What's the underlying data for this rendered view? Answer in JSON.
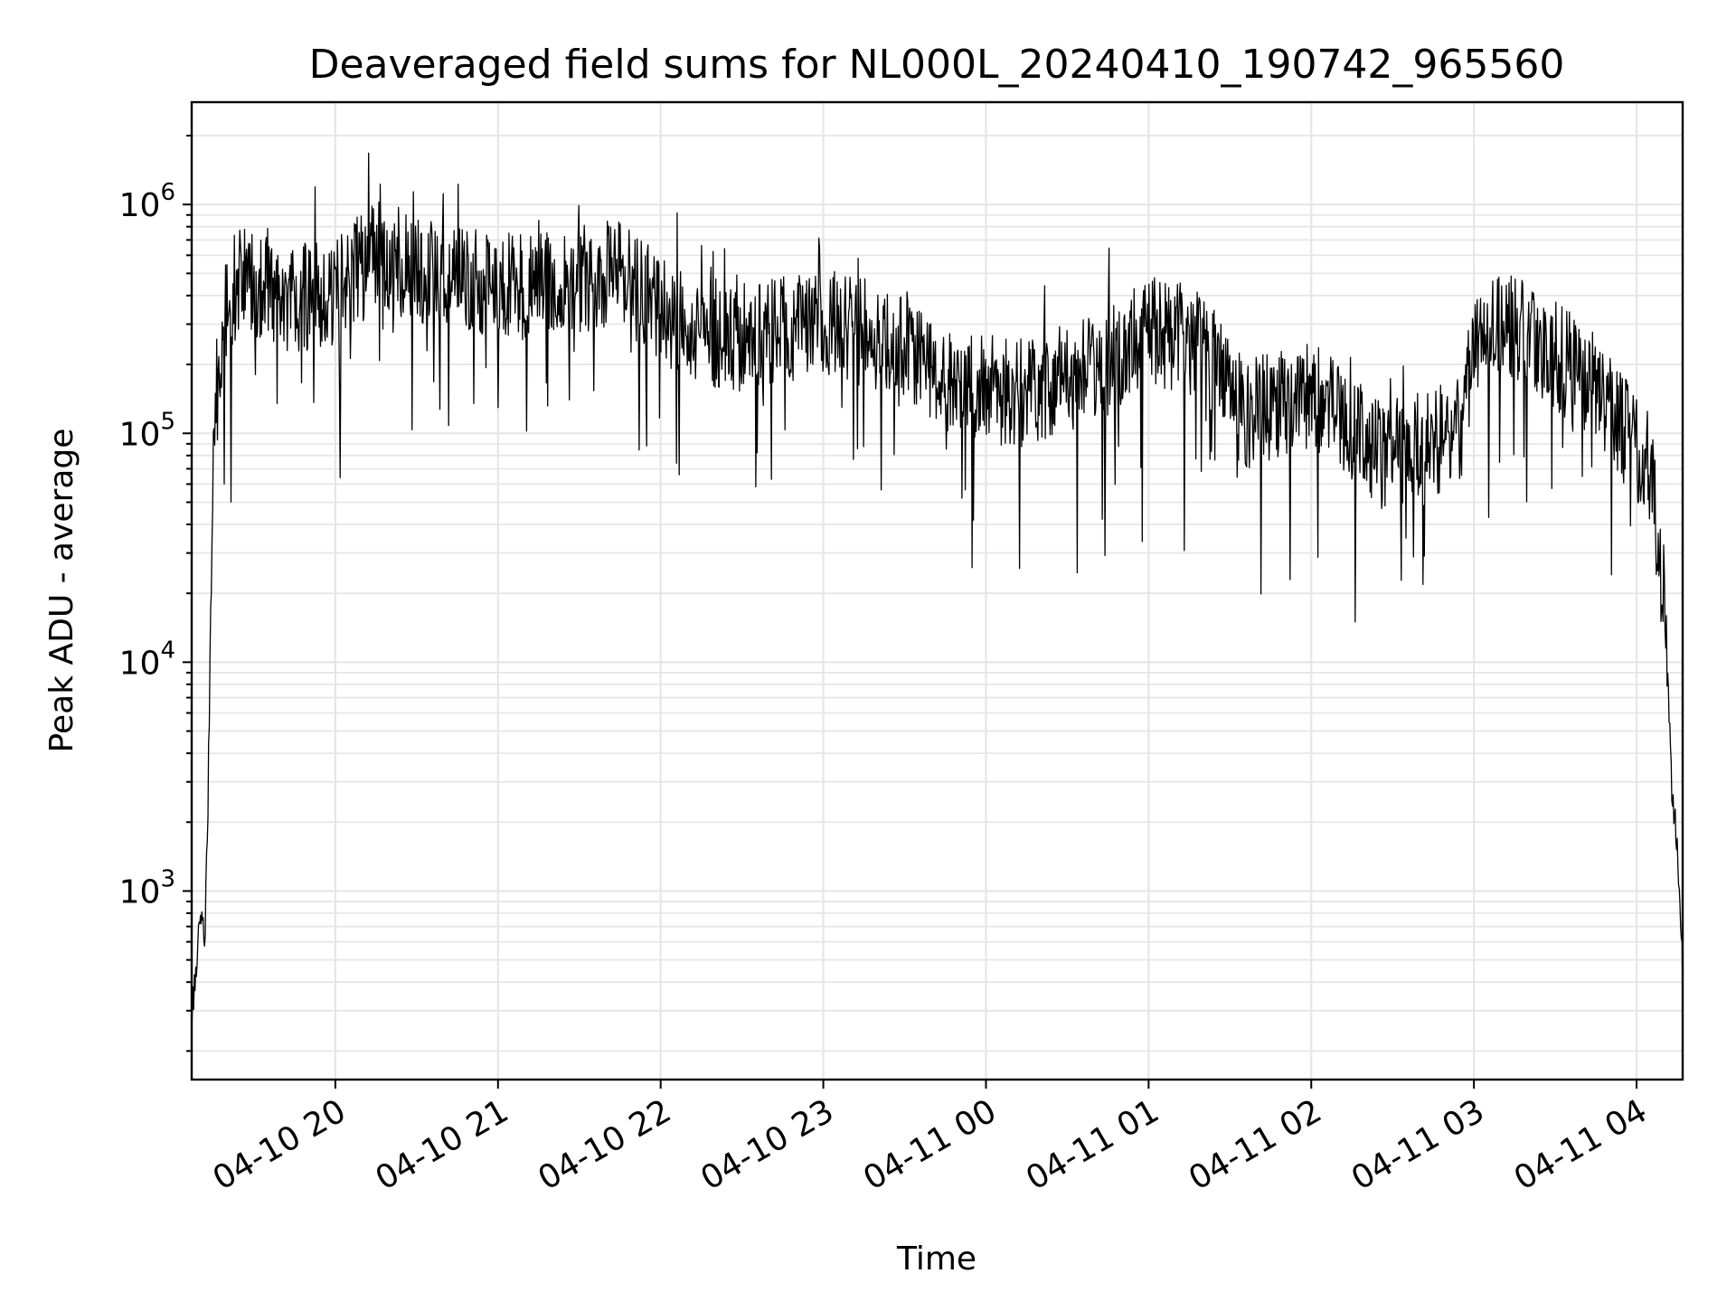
{
  "chart_data": {
    "type": "line",
    "title": "Deaveraged field sums for NL000L_20240410_190742_965560",
    "xlabel": "Time",
    "ylabel": "Peak ADU - average",
    "yscale": "log",
    "ylim": [
      150,
      2800000
    ],
    "xlim": [
      "04-10 19:07",
      "04-11 04:17"
    ],
    "grid": true,
    "line_color": "#000000",
    "x_ticks": [
      "04-10 20",
      "04-10 21",
      "04-10 22",
      "04-10 23",
      "04-11 00",
      "04-11 01",
      "04-11 02",
      "04-11 03",
      "04-11 04"
    ],
    "y_ticks": [
      {
        "value": 1000,
        "mantissa": "10",
        "exp": "3"
      },
      {
        "value": 10000,
        "mantissa": "10",
        "exp": "4"
      },
      {
        "value": 100000,
        "mantissa": "10",
        "exp": "5"
      },
      {
        "value": 1000000,
        "mantissa": "10",
        "exp": "6"
      }
    ],
    "x_ticks_time": [
      "04-10 20:00",
      "04-10 21:00",
      "04-10 22:00",
      "04-10 23:00",
      "04-11 00:00",
      "04-11 01:00",
      "04-11 02:00",
      "04-11 03:00",
      "04-11 04:00"
    ],
    "trend": [
      {
        "t": "04-10 19:07",
        "y": 250
      },
      {
        "t": "04-10 19:08",
        "y": 400
      },
      {
        "t": "04-10 19:09",
        "y": 500
      },
      {
        "t": "04-10 19:10",
        "y": 700
      },
      {
        "t": "04-10 19:12",
        "y": 650
      },
      {
        "t": "04-10 19:13",
        "y": 2500
      },
      {
        "t": "04-10 19:14",
        "y": 15000
      },
      {
        "t": "04-10 19:15",
        "y": 80000
      },
      {
        "t": "04-10 19:17",
        "y": 180000
      },
      {
        "t": "04-10 19:20",
        "y": 350000
      },
      {
        "t": "04-10 19:25",
        "y": 500000
      },
      {
        "t": "04-10 19:40",
        "y": 380000
      },
      {
        "t": "04-10 20:00",
        "y": 420000
      },
      {
        "t": "04-10 20:15",
        "y": 600000
      },
      {
        "t": "04-10 20:45",
        "y": 470000
      },
      {
        "t": "04-10 21:15",
        "y": 430000
      },
      {
        "t": "04-10 21:45",
        "y": 500000
      },
      {
        "t": "04-10 22:10",
        "y": 290000
      },
      {
        "t": "04-10 22:30",
        "y": 260000
      },
      {
        "t": "04-10 23:00",
        "y": 310000
      },
      {
        "t": "04-10 23:30",
        "y": 250000
      },
      {
        "t": "04-10 23:50",
        "y": 160000
      },
      {
        "t": "04-11 00:15",
        "y": 150000
      },
      {
        "t": "04-11 00:45",
        "y": 200000
      },
      {
        "t": "04-11 01:00",
        "y": 280000
      },
      {
        "t": "04-11 01:20",
        "y": 250000
      },
      {
        "t": "04-11 01:35",
        "y": 120000
      },
      {
        "t": "04-11 02:00",
        "y": 150000
      },
      {
        "t": "04-11 02:25",
        "y": 80000
      },
      {
        "t": "04-11 02:55",
        "y": 100000
      },
      {
        "t": "04-11 03:00",
        "y": 250000
      },
      {
        "t": "04-11 03:15",
        "y": 300000
      },
      {
        "t": "04-11 03:45",
        "y": 160000
      },
      {
        "t": "04-11 04:05",
        "y": 70000
      },
      {
        "t": "04-11 04:10",
        "y": 20000
      },
      {
        "t": "04-11 04:13",
        "y": 3000
      },
      {
        "t": "04-11 04:16",
        "y": 1000
      },
      {
        "t": "04-11 04:17",
        "y": 400
      }
    ],
    "noise_decades": 0.24,
    "sample_count": 2200
  }
}
